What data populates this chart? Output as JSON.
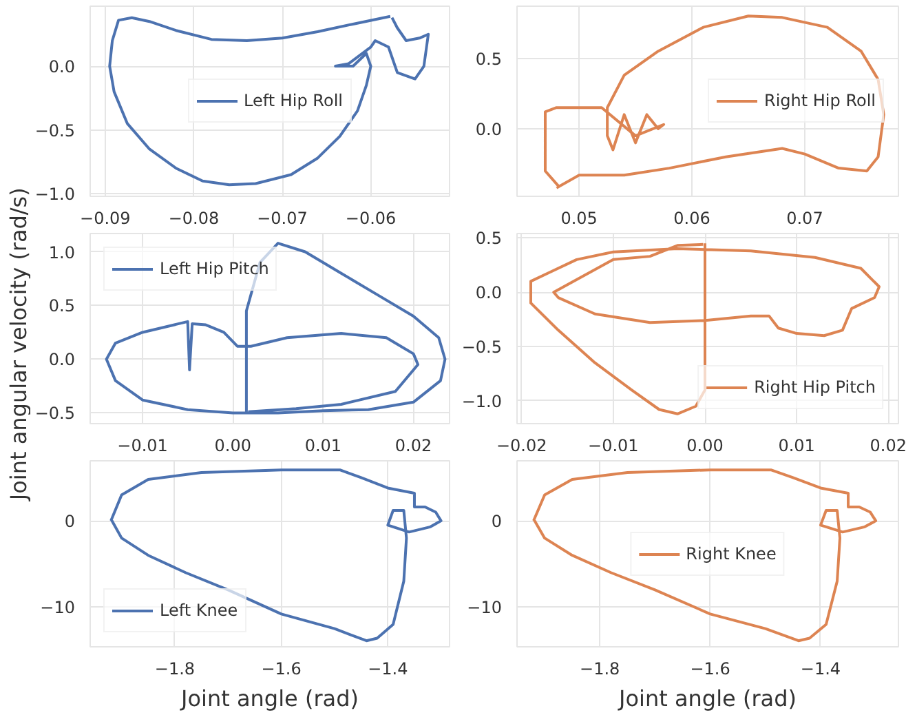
{
  "chart_data": [
    {
      "type": "line",
      "xlim": [
        -0.0917,
        -0.0511
      ],
      "ylim": [
        -1.02,
        0.47
      ],
      "grid": true,
      "legend": "center",
      "line_style": "solid",
      "xticks": [
        {
          "value": -0.09,
          "label": "−0.09"
        },
        {
          "value": -0.08,
          "label": "−0.08"
        },
        {
          "value": -0.07,
          "label": "−0.07"
        },
        {
          "value": -0.06,
          "label": "−0.06"
        }
      ],
      "yticks": [
        {
          "value": -1.0,
          "label": "−1.0"
        },
        {
          "value": -0.5,
          "label": "−0.5"
        },
        {
          "value": 0,
          "label": "0.0"
        }
      ],
      "series": [
        {
          "name": "Left Hip Roll",
          "color": "#4c72b0",
          "x": [
            -0.0578,
            -0.062,
            -0.066,
            -0.07,
            -0.074,
            -0.078,
            -0.082,
            -0.085,
            -0.087,
            -0.0885,
            -0.0892,
            -0.0895,
            -0.089,
            -0.0875,
            -0.085,
            -0.082,
            -0.079,
            -0.076,
            -0.073,
            -0.069,
            -0.066,
            -0.0635,
            -0.0615,
            -0.0605,
            -0.06,
            -0.0605,
            -0.062,
            -0.064,
            -0.0625,
            -0.06,
            -0.0595,
            -0.058,
            -0.057,
            -0.055,
            -0.054,
            -0.0535,
            -0.0545,
            -0.056,
            -0.057,
            -0.0576
          ],
          "values": [
            0.39,
            0.33,
            0.27,
            0.22,
            0.2,
            0.21,
            0.28,
            0.35,
            0.38,
            0.36,
            0.2,
            0.0,
            -0.2,
            -0.45,
            -0.65,
            -0.8,
            -0.9,
            -0.93,
            -0.92,
            -0.85,
            -0.72,
            -0.55,
            -0.35,
            -0.15,
            0.0,
            0.1,
            0.0,
            0.0,
            0.02,
            0.15,
            0.2,
            0.15,
            -0.05,
            -0.1,
            0.0,
            0.25,
            0.22,
            0.2,
            0.3,
            0.38
          ]
        }
      ]
    },
    {
      "type": "line",
      "xlim": [
        0.0445,
        0.0783
      ],
      "ylim": [
        -0.48,
        0.87
      ],
      "grid": true,
      "legend": "right",
      "line_style": "solid",
      "xticks": [
        {
          "value": 0.05,
          "label": "0.05"
        },
        {
          "value": 0.06,
          "label": "0.06"
        },
        {
          "value": 0.07,
          "label": "0.07"
        }
      ],
      "yticks": [
        {
          "value": 0,
          "label": "0.0"
        },
        {
          "value": 0.5,
          "label": "0.5"
        }
      ],
      "series": [
        {
          "name": "Right Hip Roll",
          "color": "#dd8452",
          "x": [
            0.048,
            0.05,
            0.054,
            0.058,
            0.063,
            0.068,
            0.07,
            0.073,
            0.0755,
            0.0765,
            0.077,
            0.0765,
            0.075,
            0.072,
            0.068,
            0.065,
            0.061,
            0.057,
            0.054,
            0.0525,
            0.0525,
            0.053,
            0.054,
            0.055,
            0.056,
            0.057,
            0.0575,
            0.055,
            0.052,
            0.048,
            0.047,
            0.047,
            0.0482
          ],
          "values": [
            -0.42,
            -0.33,
            -0.33,
            -0.28,
            -0.2,
            -0.14,
            -0.18,
            -0.28,
            -0.3,
            -0.2,
            0.1,
            0.35,
            0.55,
            0.72,
            0.79,
            0.8,
            0.72,
            0.55,
            0.38,
            0.15,
            -0.05,
            -0.15,
            0.1,
            -0.1,
            0.1,
            0.0,
            0.03,
            -0.05,
            0.15,
            0.15,
            0.12,
            -0.3,
            -0.41
          ]
        }
      ]
    },
    {
      "type": "line",
      "xlim": [
        -0.0158,
        0.024
      ],
      "ylim": [
        -0.6,
        1.17
      ],
      "grid": true,
      "legend": "top left",
      "line_style": "solid",
      "ylabel": "Joint angular velocity (rad/s)",
      "xticks": [
        {
          "value": -0.01,
          "label": "−0.01"
        },
        {
          "value": 0,
          "label": "0.00"
        },
        {
          "value": 0.01,
          "label": "0.01"
        },
        {
          "value": 0.02,
          "label": "0.02"
        }
      ],
      "yticks": [
        {
          "value": -0.5,
          "label": "−0.5"
        },
        {
          "value": 0,
          "label": "0.0"
        },
        {
          "value": 0.5,
          "label": "0.5"
        },
        {
          "value": 1.0,
          "label": "1.0"
        }
      ],
      "series": [
        {
          "name": "Left Hip Pitch",
          "color": "#4c72b0",
          "x": [
            0.0015,
            0.0015,
            0.003,
            0.005,
            0.008,
            0.012,
            0.016,
            0.02,
            0.0228,
            0.0235,
            0.023,
            0.02,
            0.015,
            0.01,
            0.005,
            0.0,
            -0.005,
            -0.01,
            -0.013,
            -0.014,
            -0.013,
            -0.01,
            -0.005,
            -0.0048,
            -0.0045,
            -0.003,
            -0.001,
            0.0005,
            0.002,
            0.006,
            0.012,
            0.017,
            0.02,
            0.0205,
            0.018,
            0.012,
            0.007,
            0.0017
          ],
          "values": [
            -0.5,
            0.45,
            0.9,
            1.08,
            1.0,
            0.8,
            0.6,
            0.4,
            0.2,
            0.0,
            -0.2,
            -0.4,
            -0.47,
            -0.48,
            -0.5,
            -0.5,
            -0.47,
            -0.38,
            -0.2,
            0.0,
            0.15,
            0.25,
            0.35,
            -0.1,
            0.33,
            0.32,
            0.25,
            0.12,
            0.12,
            0.2,
            0.24,
            0.2,
            0.05,
            -0.05,
            -0.3,
            -0.42,
            -0.46,
            -0.49
          ]
        }
      ]
    },
    {
      "type": "line",
      "xlim": [
        -0.0205,
        0.0211
      ],
      "ylim": [
        -1.21,
        0.54
      ],
      "grid": true,
      "legend": "bottom right",
      "line_style": "solid",
      "xticks": [
        {
          "value": -0.02,
          "label": "−0.02"
        },
        {
          "value": -0.01,
          "label": "−0.01"
        },
        {
          "value": 0,
          "label": "0.00"
        },
        {
          "value": 0.01,
          "label": "0.01"
        },
        {
          "value": 0.02,
          "label": "0.02"
        }
      ],
      "yticks": [
        {
          "value": -1.0,
          "label": "−1.0"
        },
        {
          "value": -0.5,
          "label": "−0.5"
        },
        {
          "value": 0,
          "label": "0.0"
        },
        {
          "value": 0.5,
          "label": "0.5"
        }
      ],
      "series": [
        {
          "name": "Right Hip Pitch",
          "color": "#dd8452",
          "x": [
            0.0,
            0.0,
            -0.001,
            -0.003,
            -0.005,
            -0.008,
            -0.012,
            -0.016,
            -0.019,
            -0.019,
            -0.017,
            -0.014,
            -0.01,
            -0.003,
            0.005,
            0.012,
            0.017,
            0.019,
            0.0185,
            0.016,
            0.015,
            0.013,
            0.01,
            0.008,
            0.007,
            0.005,
            0.0,
            -0.006,
            -0.012,
            -0.016,
            -0.0165,
            -0.015,
            -0.01,
            -0.006,
            -0.003,
            -0.0002
          ],
          "values": [
            0.45,
            -0.9,
            -1.05,
            -1.12,
            -1.08,
            -0.9,
            -0.65,
            -0.35,
            -0.1,
            0.1,
            0.18,
            0.3,
            0.37,
            0.4,
            0.38,
            0.32,
            0.22,
            0.05,
            -0.05,
            -0.15,
            -0.35,
            -0.4,
            -0.38,
            -0.33,
            -0.22,
            -0.22,
            -0.26,
            -0.28,
            -0.2,
            -0.05,
            0.0,
            0.07,
            0.3,
            0.33,
            0.43,
            0.44
          ]
        }
      ]
    },
    {
      "type": "line",
      "xlim": [
        -1.959,
        -1.284
      ],
      "ylim": [
        -14.6,
        6.95
      ],
      "grid": true,
      "legend": "bottom left",
      "line_style": "solid",
      "xlabel": "Joint angle (rad)",
      "xticks": [
        {
          "value": -1.8,
          "label": "−1.8"
        },
        {
          "value": -1.6,
          "label": "−1.6"
        },
        {
          "value": -1.4,
          "label": "−1.4"
        }
      ],
      "yticks": [
        {
          "value": -10,
          "label": "−10"
        },
        0
      ],
      "series": [
        {
          "name": "Left Knee",
          "color": "#4c72b0",
          "x": [
            -1.92,
            -1.9,
            -1.85,
            -1.75,
            -1.6,
            -1.49,
            -1.45,
            -1.4,
            -1.35,
            -1.35,
            -1.33,
            -1.31,
            -1.3,
            -1.32,
            -1.36,
            -1.4,
            -1.39,
            -1.37,
            -1.365,
            -1.37,
            -1.39,
            -1.42,
            -1.44,
            -1.5,
            -1.6,
            -1.7,
            -1.78,
            -1.85,
            -1.9,
            -1.919
          ],
          "values": [
            0,
            3,
            4.8,
            5.6,
            5.9,
            5.9,
            5,
            3.8,
            3.2,
            1.6,
            1.6,
            1,
            0,
            -0.7,
            -1.3,
            -0.5,
            1.2,
            1.2,
            -2,
            -7,
            -12,
            -13.6,
            -13.9,
            -12.5,
            -10.8,
            -8,
            -6,
            -4,
            -2,
            0.1
          ]
        }
      ]
    },
    {
      "type": "line",
      "xlim": [
        -1.95,
        -1.259
      ],
      "ylim": [
        -14.6,
        6.95
      ],
      "grid": true,
      "legend": "center",
      "line_style": "solid",
      "xlabel": "Joint angle (rad)",
      "xticks": [
        {
          "value": -1.8,
          "label": "−1.8"
        },
        {
          "value": -1.6,
          "label": "−1.6"
        },
        {
          "value": -1.4,
          "label": "−1.4"
        }
      ],
      "yticks": [
        {
          "value": -10,
          "label": "−10"
        },
        0
      ],
      "series": [
        {
          "name": "Right Knee",
          "color": "#dd8452",
          "x": [
            -1.92,
            -1.9,
            -1.85,
            -1.75,
            -1.6,
            -1.49,
            -1.45,
            -1.4,
            -1.35,
            -1.35,
            -1.33,
            -1.31,
            -1.3,
            -1.32,
            -1.36,
            -1.4,
            -1.39,
            -1.37,
            -1.365,
            -1.37,
            -1.39,
            -1.42,
            -1.44,
            -1.5,
            -1.6,
            -1.7,
            -1.78,
            -1.85,
            -1.9,
            -1.919
          ],
          "values": [
            0,
            3,
            4.8,
            5.6,
            5.9,
            5.9,
            5,
            3.8,
            3.2,
            1.6,
            1.6,
            1,
            0,
            -0.7,
            -1.3,
            -0.5,
            1.2,
            1.2,
            -2,
            -7,
            -12,
            -13.6,
            -13.9,
            -12.5,
            -10.8,
            -8,
            -6,
            -4,
            -2,
            0.1
          ]
        }
      ]
    }
  ]
}
